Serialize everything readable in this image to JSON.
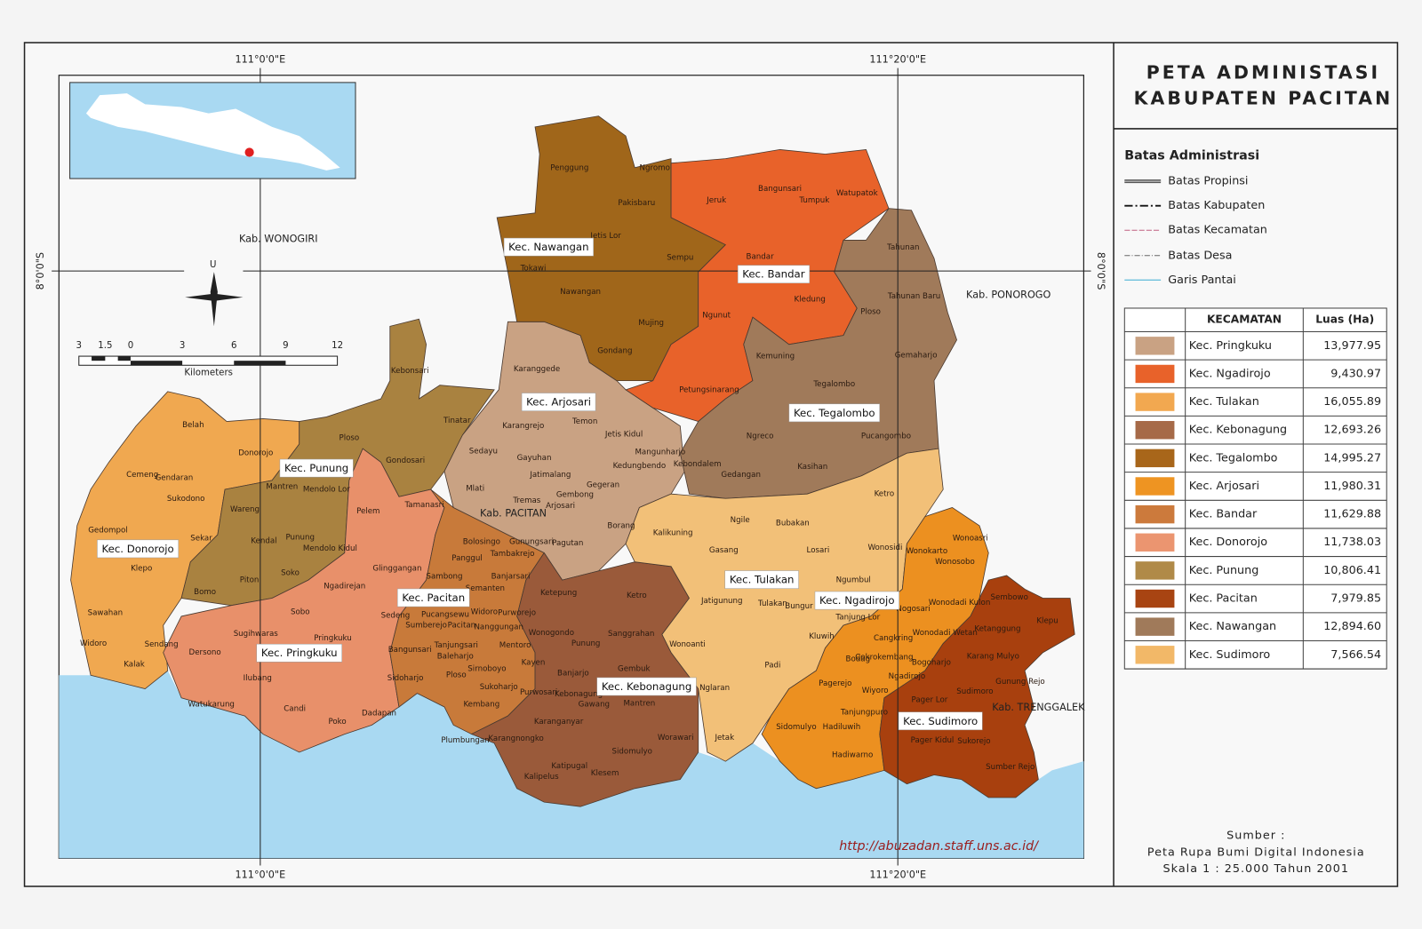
{
  "title": [
    "PETA ADMINISTASI",
    "KABUPATEN PACITAN"
  ],
  "coordinates": {
    "top": [
      "111°0'0\"E",
      "111°20'0\"E"
    ],
    "bottom": [
      "111°0'0\"E",
      "111°20'0\"E"
    ],
    "left": "8°0'0\"S",
    "right": "8°0'0\"S"
  },
  "neighbors": [
    "Kab. WONOGIRI",
    "Kab. PONOROGO",
    "Kab. TRENGGALEK",
    "Kab. PACITAN"
  ],
  "north_arrow": "U",
  "scale_bar": {
    "ticks": [
      "3",
      "1.5",
      "0",
      "3",
      "6",
      "9",
      "12"
    ],
    "unit": "Kilometers"
  },
  "legend": {
    "heading": "Batas Administrasi",
    "lines": [
      "Batas Propinsi",
      "Batas Kabupaten",
      "Batas Kecamatan",
      "Batas Desa",
      "Garis Pantai"
    ]
  },
  "table": {
    "columns": [
      "KECAMATAN",
      "Luas (Ha)"
    ],
    "rows": [
      {
        "name": "Kec. Pringkuku",
        "area": "13,977.95",
        "color": "#c9a283"
      },
      {
        "name": "Kec. Ngadirojo",
        "area": "9,430.97",
        "color": "#e8622a"
      },
      {
        "name": "Kec. Tulakan",
        "area": "16,055.89",
        "color": "#f2a850"
      },
      {
        "name": "Kec. Kebonagung",
        "area": "12,693.26",
        "color": "#a66a48"
      },
      {
        "name": "Kec. Tegalombo",
        "area": "14,995.27",
        "color": "#a8661a"
      },
      {
        "name": "Kec. Arjosari",
        "area": "11,980.31",
        "color": "#ee9422"
      },
      {
        "name": "Kec. Bandar",
        "area": "11,629.88",
        "color": "#cc7a3c"
      },
      {
        "name": "Kec. Donorojo",
        "area": "11,738.03",
        "color": "#eb9570"
      },
      {
        "name": "Kec. Punung",
        "area": "10,806.41",
        "color": "#b08a48"
      },
      {
        "name": "Kec. Pacitan",
        "area": "7,979.85",
        "color": "#a84412"
      },
      {
        "name": "Kec. Nawangan",
        "area": "12,894.60",
        "color": "#a07a5a"
      },
      {
        "name": "Kec. Sudimoro",
        "area": "7,566.54",
        "color": "#f2b868"
      }
    ]
  },
  "district_labels": [
    "Kec. Nawangan",
    "Kec. Bandar",
    "Kec. Arjosari",
    "Kec. Tegalombo",
    "Kec. Punung",
    "Kec. Donorojo",
    "Kec. Pacitan",
    "Kec. Tulakan",
    "Kec. Ngadirojo",
    "Kec. Pringkuku",
    "Kec. Kebonagung",
    "Kec. Sudimoro"
  ],
  "villages": [
    "Penggung",
    "Ngromo",
    "Pakisbaru",
    "Jeruk",
    "Bangunsari",
    "Tumpuk",
    "Watupatok",
    "Jetis Lor",
    "Sempu",
    "Tokawi",
    "Nawangan",
    "Bandar",
    "Tahunan",
    "Tahunan Baru",
    "Kledung",
    "Ngunut",
    "Mujing",
    "Ploso",
    "Gemaharjo",
    "Gondang",
    "Kemuning",
    "Tegalombo",
    "Petungsinarang",
    "Kebonsari",
    "Karanggede",
    "Temon",
    "Tinatar",
    "Karangrejo",
    "Jetis Kidul",
    "Ngreco",
    "Pucangombo",
    "Belah",
    "Ploso",
    "Donorojo",
    "Sedayu",
    "Gayuhan",
    "Mangunharjo",
    "Gondosari",
    "Kebondalem",
    "Kedungbendo",
    "Kasihan",
    "Cemeng",
    "Gendaran",
    "Jatimalang",
    "Gedangan",
    "Ketro",
    "Mantren",
    "Mendolo Lor",
    "Mlati",
    "Gegeran",
    "Gembong",
    "Sukodono",
    "Tamanasri",
    "Tremas",
    "Arjosari",
    "Wareng",
    "Pelem",
    "Ngile",
    "Bubakan",
    "Gedompol",
    "Kalikuning",
    "Sekar",
    "Kendal",
    "Punung",
    "Borang",
    "Bolosingo",
    "Gunungsari",
    "Pagutan",
    "Wonoasri",
    "Mendolo Kidul",
    "Gasang",
    "Losari",
    "Wonosidi",
    "Wonokarto",
    "Tambakrejo",
    "Panggul",
    "Wonosobo",
    "Glinggangan",
    "Soko",
    "Klepo",
    "Piton",
    "Ngumbul",
    "Sambong",
    "Banjarsari",
    "Ketepung",
    "Ketro",
    "Semanten",
    "Bomo",
    "Ngadirejan",
    "Jatigunung",
    "Tulakan",
    "Bungur",
    "Wonodadi Kulon",
    "Sembowo",
    "Klepu",
    "Sedeng",
    "Sobo",
    "Sawahan",
    "Pucangsewu",
    "Widoro",
    "Purworejo",
    "Tanjung Lor",
    "Nogosari",
    "Sumberejo",
    "Pacitan",
    "Sanggrahan",
    "Wonogondo",
    "Nanggungan",
    "Kluwih",
    "Cangkring",
    "Wonodadi Wetan",
    "Ketanggung",
    "Sugihwaras",
    "Pringkuku",
    "Widoro",
    "Sendang",
    "Wonoanti",
    "Punung",
    "Bangunsari",
    "Tanjungsari",
    "Mentoro",
    "Karang Mulyo",
    "Dersono",
    "Padi",
    "Bodag",
    "Cokrokembang",
    "Bogoharjo",
    "Baleharjo",
    "Kayen",
    "Gembuk",
    "Sirnoboyo",
    "Kalak",
    "Tanjungpuro",
    "Ngadirojo",
    "Banjarjo",
    "Ploso",
    "Ilubang",
    "Gunung Rejo",
    "Sidoharjo",
    "Pagerejo",
    "Sukoharjo",
    "Nglaran",
    "Wiyoro",
    "Sudimoro",
    "Purwosari",
    "Kebonagung",
    "Gawang",
    "Mantren",
    "Pager Lor",
    "Watukarung",
    "Kembang",
    "Candi",
    "Sidomulyo",
    "Hadiluwih",
    "Poko",
    "Dadapan",
    "Karanganyar",
    "Worawari",
    "Jetak",
    "Pager Kidul",
    "Sukorejo",
    "Plumbungan",
    "Karangnongko",
    "Sidomulyo",
    "Kalipelus",
    "Katipugal",
    "Klesem",
    "Hadiwarno",
    "Sumber Rejo"
  ],
  "url": "http://abuzadan.staff.uns.ac.id/",
  "source": [
    "Sumber :",
    "Peta Rupa Bumi Digital Indonesia",
    "Skala 1 : 25.000 Tahun 2001"
  ]
}
